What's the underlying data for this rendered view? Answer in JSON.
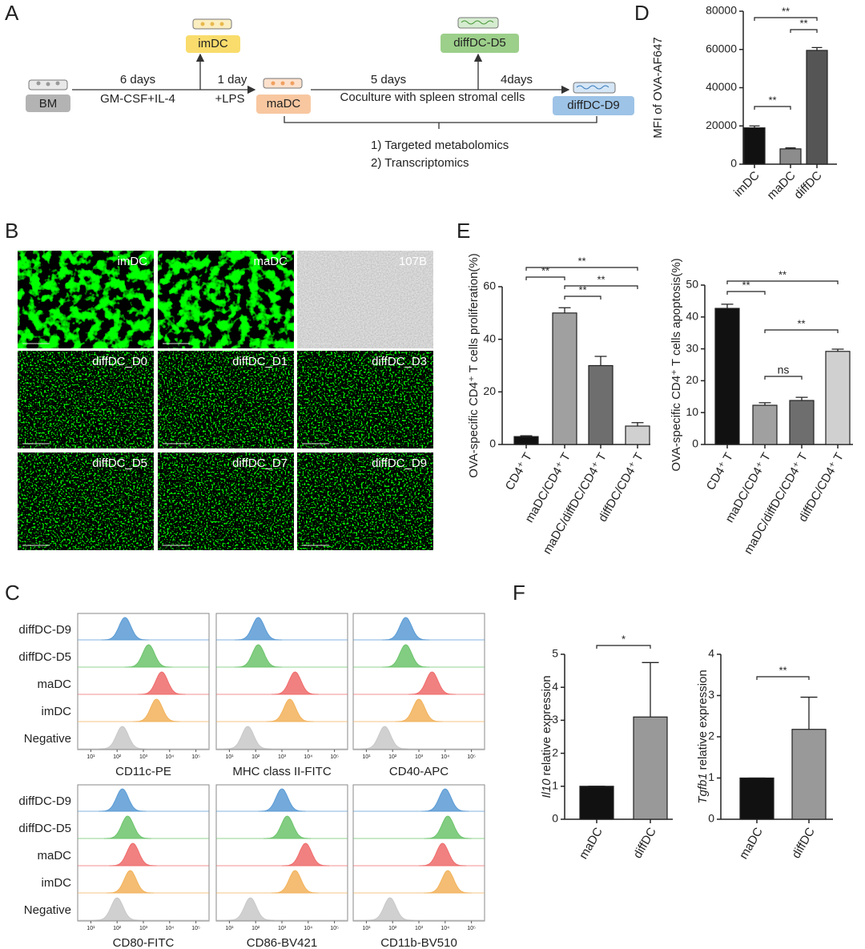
{
  "panel_letters": [
    "A",
    "B",
    "C",
    "D",
    "E",
    "F"
  ],
  "panel_a": {
    "bm": "BM",
    "step1_time": "6 days",
    "step1_factor": "GM-CSF+IL-4",
    "imdc": "imDC",
    "step2_time": "1 day",
    "step2_factor": "+LPS",
    "madc": "maDC",
    "step3_time": "5 days",
    "step3_factor": "Coculture with spleen stromal cells",
    "diffdc_d5": "diffDC-D5",
    "step4_time": "4days",
    "diffdc_d9": "diffDC-D9",
    "analysis": [
      "1) Targeted metabolomics",
      "2) Transcriptomics"
    ]
  },
  "panel_b": {
    "labels": [
      "imDC",
      "maDC",
      "107B",
      "diffDC_D0",
      "diffDC_D1",
      "diffDC_D3",
      "diffDC_D5",
      "diffDC_D7",
      "diffDC_D9"
    ]
  },
  "panel_c": {
    "type": "ridgeline",
    "rows": [
      "diffDC-D9",
      "diffDC-D5",
      "maDC",
      "imDC",
      "Negative"
    ],
    "colors": [
      "#5b9bd5",
      "#6cc46c",
      "#ef6b6b",
      "#f2b25b",
      "#c8c8c8"
    ],
    "xlim": [
      0.5,
      5.5
    ],
    "xticks": [
      {
        "value": 1,
        "label": "10¹"
      },
      {
        "value": 2,
        "label": "10²"
      },
      {
        "value": 3,
        "label": "10³"
      },
      {
        "value": 4,
        "label": "10⁴"
      },
      {
        "value": 5,
        "label": "10⁵"
      }
    ],
    "panels": [
      {
        "marker": "CD11c-PE",
        "peaks": [
          2.3,
          3.2,
          3.7,
          3.5,
          2.2
        ]
      },
      {
        "marker": "MHC class II-FITC",
        "peaks": [
          2.1,
          2.1,
          3.5,
          3.3,
          1.7
        ]
      },
      {
        "marker": "CD40-APC",
        "peaks": [
          2.5,
          2.5,
          3.5,
          3.0,
          1.7
        ]
      },
      {
        "marker": "CD80-FITC",
        "peaks": [
          2.2,
          2.4,
          2.6,
          2.5,
          2.0
        ]
      },
      {
        "marker": "CD86-BV421",
        "peaks": [
          3.0,
          3.2,
          3.9,
          3.5,
          1.8
        ]
      },
      {
        "marker": "CD11b-BV510",
        "peaks": [
          4.0,
          4.1,
          3.9,
          4.1,
          1.9
        ]
      }
    ]
  },
  "chart_data": [
    {
      "type": "bar",
      "ylabel": "MFI of OVA-AF647",
      "categories": [
        "imDC",
        "maDC",
        "diffDC"
      ],
      "values": [
        19000,
        8000,
        59500
      ],
      "errors": [
        1000,
        500,
        1500
      ],
      "colors": [
        "#111111",
        "#8c8c8c",
        "#555555"
      ],
      "ylim": [
        0,
        80000
      ],
      "yticks": [
        0,
        20000,
        40000,
        60000,
        80000
      ],
      "significance": [
        {
          "label": "**",
          "between": [
            "imDC",
            "diffDC"
          ]
        },
        {
          "label": "**",
          "between": [
            "maDC",
            "diffDC"
          ]
        },
        {
          "label": "**",
          "between": [
            "imDC",
            "maDC"
          ]
        }
      ]
    },
    {
      "type": "bar",
      "ylabel": "OVA-specific CD4⁺ T cells proliferation(%)",
      "categories": [
        "CD4⁺ T",
        "maDC/CD4⁺ T",
        "maDC/diffDC/CD4⁺ T",
        "diffDC/CD4⁺ T"
      ],
      "values": [
        3,
        50,
        30,
        7
      ],
      "errors": [
        0.3,
        2,
        3.5,
        1.3
      ],
      "colors": [
        "#111111",
        "#a0a0a0",
        "#6e6e6e",
        "#d0d0d0"
      ],
      "ylim": [
        0,
        60
      ],
      "yticks": [
        0,
        20,
        40,
        60
      ],
      "significance": [
        {
          "label": "**",
          "between": [
            "CD4⁺ T",
            "diffDC/CD4⁺ T"
          ]
        },
        {
          "label": "**",
          "between": [
            "CD4⁺ T",
            "maDC/CD4⁺ T"
          ]
        },
        {
          "label": "**",
          "between": [
            "maDC/CD4⁺ T",
            "diffDC/CD4⁺ T"
          ]
        },
        {
          "label": "**",
          "between": [
            "maDC/CD4⁺ T",
            "maDC/diffDC/CD4⁺ T"
          ]
        }
      ]
    },
    {
      "type": "bar",
      "ylabel": "OVA-specific CD4⁺ T cells apoptosis(%)",
      "categories": [
        "CD4⁺ T",
        "maDC/CD4⁺ T",
        "maDC/diffDC/CD4⁺ T",
        "diffDC/CD4⁺ T"
      ],
      "values": [
        42.7,
        12.3,
        13.8,
        29.2
      ],
      "errors": [
        1.3,
        0.8,
        1,
        0.7
      ],
      "colors": [
        "#111111",
        "#a0a0a0",
        "#6e6e6e",
        "#d0d0d0"
      ],
      "ylim": [
        0,
        50
      ],
      "yticks": [
        0,
        10,
        20,
        30,
        40,
        50
      ],
      "significance": [
        {
          "label": "**",
          "between": [
            "CD4⁺ T",
            "diffDC/CD4⁺ T"
          ]
        },
        {
          "label": "**",
          "between": [
            "CD4⁺ T",
            "maDC/CD4⁺ T"
          ]
        },
        {
          "label": "**",
          "between": [
            "maDC/CD4⁺ T",
            "diffDC/CD4⁺ T"
          ]
        },
        {
          "label": "ns",
          "between": [
            "maDC/CD4⁺ T",
            "maDC/diffDC/CD4⁺ T"
          ]
        }
      ]
    },
    {
      "type": "bar",
      "ylabel_gene": "Il10",
      "ylabel": "relative expression",
      "categories": [
        "maDC",
        "diffDC"
      ],
      "values": [
        1,
        3.1
      ],
      "errors": [
        0,
        1.65
      ],
      "colors": [
        "#111111",
        "#999999"
      ],
      "ylim": [
        0,
        5
      ],
      "yticks": [
        0,
        1,
        2,
        3,
        4,
        5
      ],
      "significance": [
        {
          "label": "*",
          "between": [
            "maDC",
            "diffDC"
          ]
        }
      ]
    },
    {
      "type": "bar",
      "ylabel_gene": "Tgfb1",
      "ylabel": "relative expression",
      "categories": [
        "maDC",
        "diffDC"
      ],
      "values": [
        1,
        2.18
      ],
      "errors": [
        0,
        0.78
      ],
      "colors": [
        "#111111",
        "#999999"
      ],
      "ylim": [
        0,
        4
      ],
      "yticks": [
        0,
        1,
        2,
        3,
        4
      ],
      "significance": [
        {
          "label": "**",
          "between": [
            "maDC",
            "diffDC"
          ]
        }
      ]
    }
  ]
}
